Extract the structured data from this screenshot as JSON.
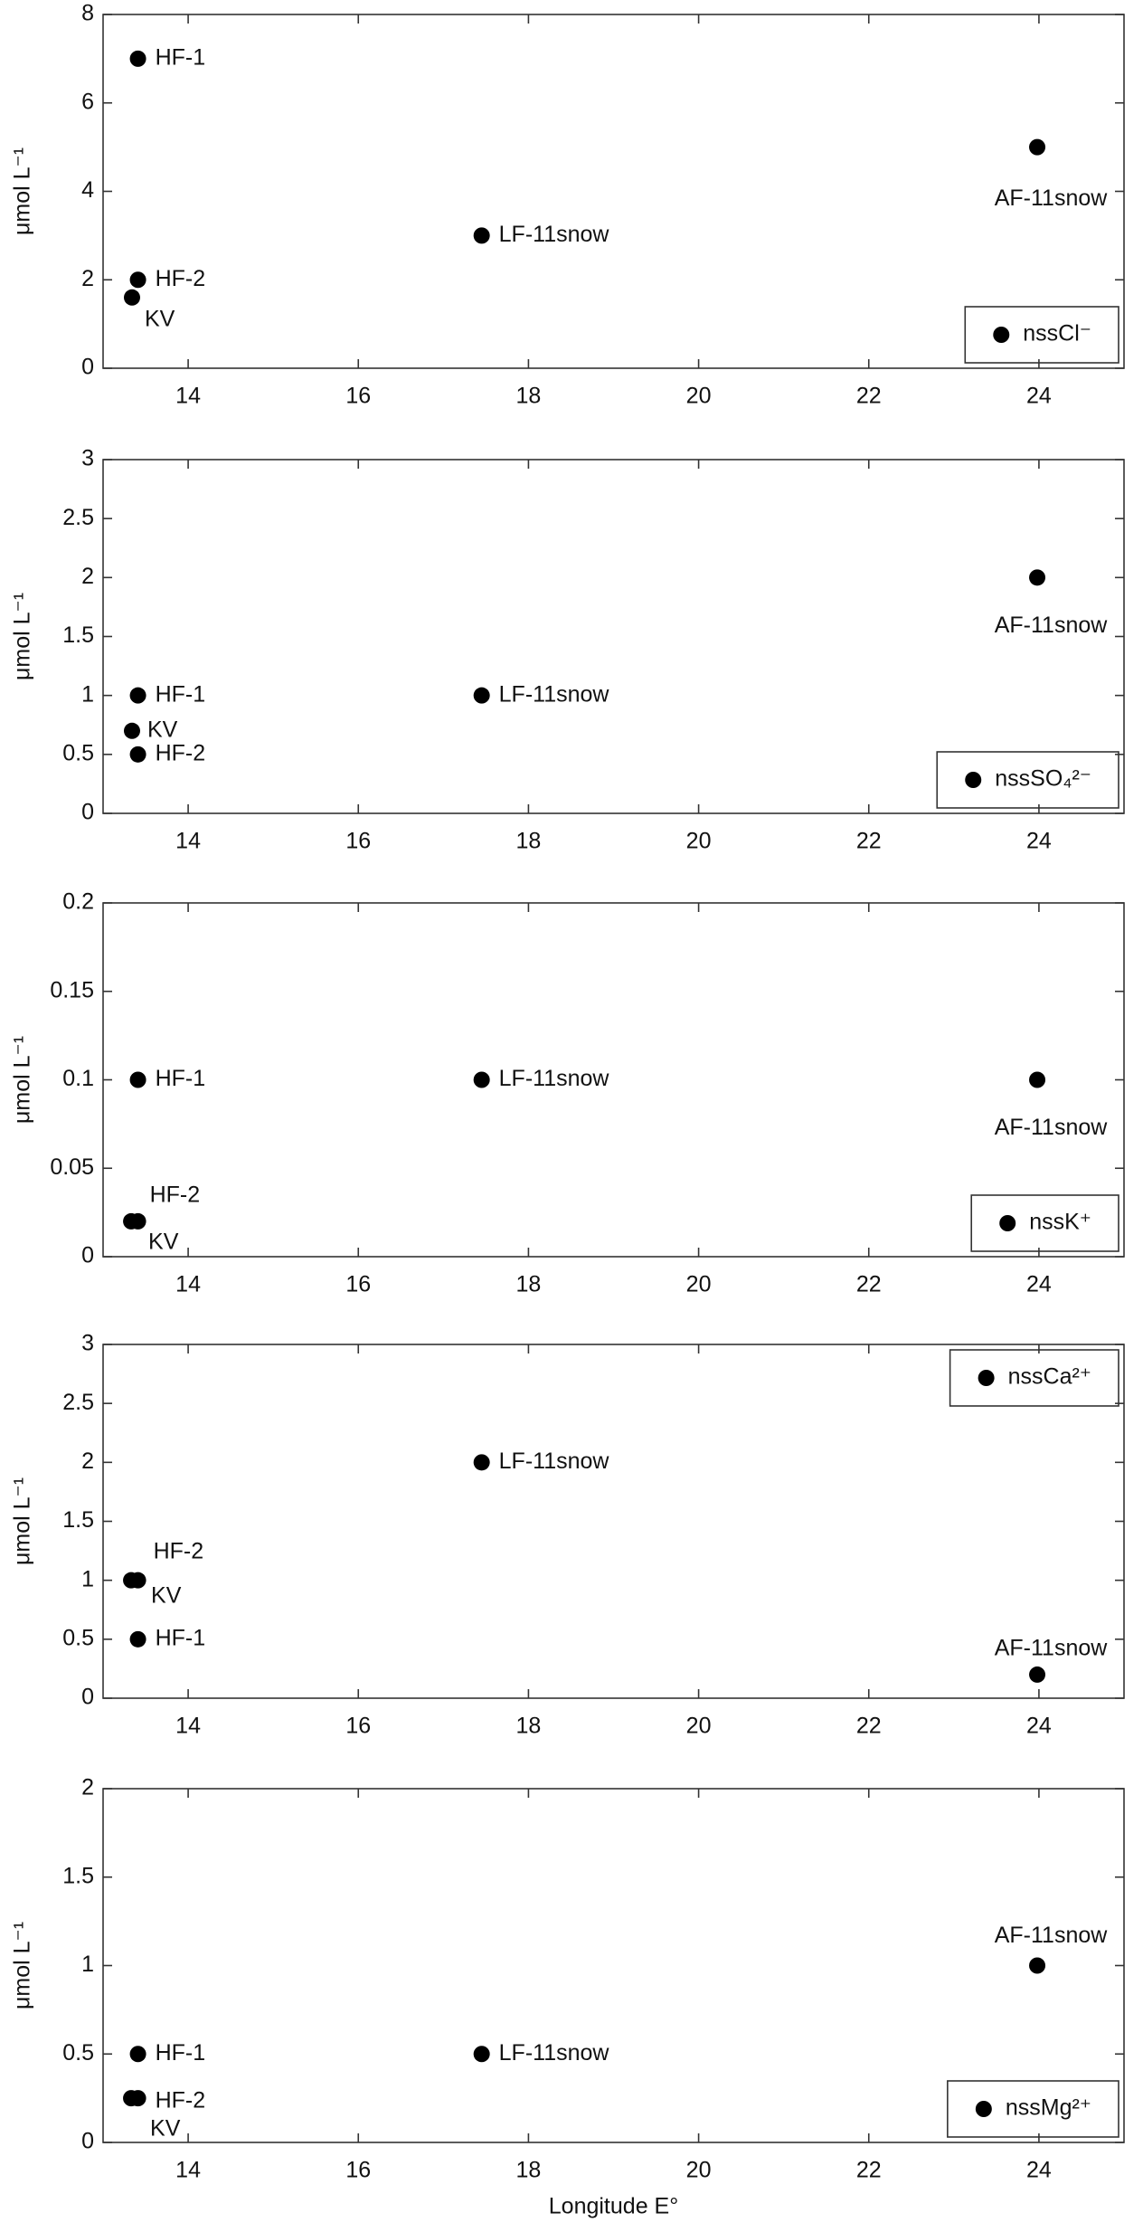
{
  "chart_data": [
    {
      "type": "scatter",
      "ylabel": "μmol L⁻¹",
      "x": [
        13.41,
        13.41,
        13.34,
        17.45,
        23.98
      ],
      "point_labels": [
        "HF-1",
        "HF-2",
        "KV",
        "LF-11snow",
        "AF-11snow"
      ],
      "series": [
        {
          "name": "nssCl⁻",
          "color": "#000000",
          "values": [
            7,
            2,
            1.6,
            3,
            5
          ]
        }
      ],
      "xlim": [
        13,
        25
      ],
      "xticks": [
        14,
        16,
        18,
        20,
        22,
        24
      ],
      "ylim": [
        0,
        8
      ],
      "yticks": [
        0,
        2,
        4,
        6,
        8
      ],
      "legend": "lower right"
    },
    {
      "type": "scatter",
      "ylabel": "μmol L⁻¹",
      "x": [
        13.41,
        13.41,
        13.34,
        17.45,
        23.98
      ],
      "point_labels": [
        "HF-1",
        "HF-2",
        "KV",
        "LF-11snow",
        "AF-11snow"
      ],
      "series": [
        {
          "name": "nssSO₄²⁻",
          "color": "#000000",
          "values": [
            1,
            0.5,
            0.7,
            1,
            2
          ]
        }
      ],
      "xlim": [
        13,
        25
      ],
      "xticks": [
        14,
        16,
        18,
        20,
        22,
        24
      ],
      "ylim": [
        0,
        3
      ],
      "yticks": [
        0,
        0.5,
        1,
        1.5,
        2,
        2.5,
        3
      ],
      "legend": "lower right"
    },
    {
      "type": "scatter",
      "ylabel": "μmol L⁻¹",
      "x": [
        13.41,
        13.41,
        13.33,
        17.45,
        23.98
      ],
      "point_labels": [
        "HF-1",
        "HF-2",
        "KV",
        "LF-11snow",
        "AF-11snow"
      ],
      "series": [
        {
          "name": "nssK⁺",
          "color": "#000000",
          "values": [
            0.1,
            0.02,
            0.02,
            0.1,
            0.1
          ]
        }
      ],
      "xlim": [
        13,
        25
      ],
      "xticks": [
        14,
        16,
        18,
        20,
        22,
        24
      ],
      "ylim": [
        0,
        0.2
      ],
      "yticks": [
        0,
        0.05,
        0.1,
        0.15,
        0.2
      ],
      "legend": "lower right"
    },
    {
      "type": "scatter",
      "ylabel": "μmol L⁻¹",
      "x": [
        13.41,
        13.41,
        13.33,
        17.45,
        23.98
      ],
      "point_labels": [
        "HF-1",
        "HF-2",
        "KV",
        "LF-11snow",
        "AF-11snow"
      ],
      "series": [
        {
          "name": "nssCa²⁺",
          "color": "#000000",
          "values": [
            0.5,
            1,
            1,
            2,
            0.2
          ]
        }
      ],
      "xlim": [
        13,
        25
      ],
      "xticks": [
        14,
        16,
        18,
        20,
        22,
        24
      ],
      "ylim": [
        0,
        3
      ],
      "yticks": [
        0,
        0.5,
        1,
        1.5,
        2,
        2.5,
        3
      ],
      "legend": "upper right"
    },
    {
      "type": "scatter",
      "ylabel": "μmol L⁻¹",
      "xlabel": "Longitude E°",
      "x": [
        13.41,
        13.41,
        13.33,
        17.45,
        23.98
      ],
      "point_labels": [
        "HF-1",
        "HF-2",
        "KV",
        "LF-11snow",
        "AF-11snow"
      ],
      "series": [
        {
          "name": "nssMg²⁺",
          "color": "#000000",
          "values": [
            0.5,
            0.25,
            0.25,
            0.5,
            1
          ]
        }
      ],
      "xlim": [
        13,
        25
      ],
      "xticks": [
        14,
        16,
        18,
        20,
        22,
        24
      ],
      "ylim": [
        0,
        2
      ],
      "yticks": [
        0,
        0.5,
        1,
        1.5,
        2
      ],
      "legend": "lower right"
    }
  ]
}
